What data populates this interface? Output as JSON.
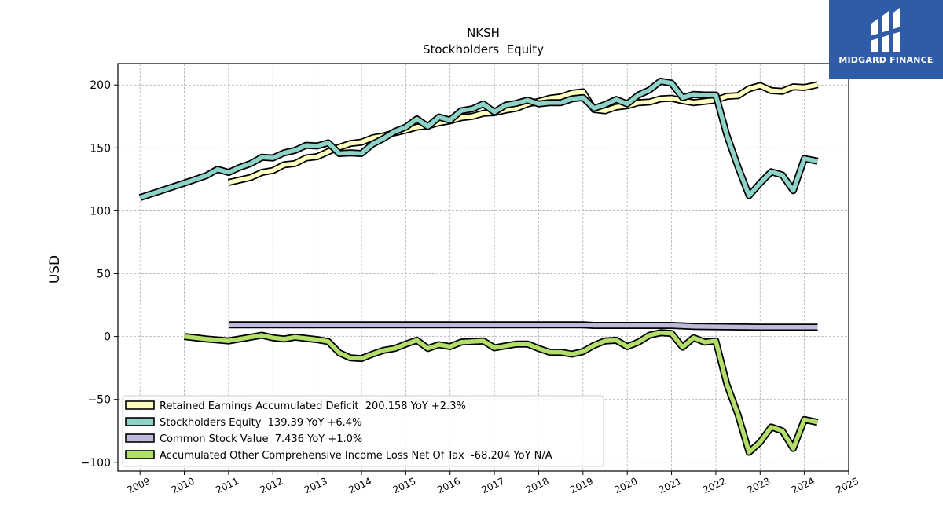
{
  "brand": {
    "name": "MIDGARD FINANCE",
    "bg_color": "#2f5ba7"
  },
  "chart_data": {
    "type": "line",
    "title": "NKSH",
    "subtitle": "Stockholders  Equity",
    "xlabel": "",
    "ylabel": "USD",
    "xlim": [
      2008.5,
      2025
    ],
    "ylim": [
      -107,
      217
    ],
    "x_ticks": [
      2009,
      2010,
      2011,
      2012,
      2013,
      2014,
      2015,
      2016,
      2017,
      2018,
      2019,
      2020,
      2021,
      2022,
      2023,
      2024,
      2025
    ],
    "y_ticks": [
      -100,
      -50,
      0,
      50,
      100,
      150,
      200
    ],
    "y_tick_labels": [
      "−100",
      "−50",
      "0",
      "50",
      "100",
      "150",
      "200"
    ],
    "grid": true,
    "legend_position": "lower-left",
    "series": [
      {
        "name": "Retained Earnings Accumulated Deficit",
        "legend": "Retained Earnings Accumulated Deficit  200.158 YoY +2.3%",
        "color": "#ffffc0",
        "points": [
          [
            2011.0,
            122.5
          ],
          [
            2011.25,
            124.5
          ],
          [
            2011.5,
            126.5
          ],
          [
            2011.75,
            130.5
          ],
          [
            2012.0,
            132.0
          ],
          [
            2012.25,
            136.5
          ],
          [
            2012.5,
            137.5
          ],
          [
            2012.75,
            142.0
          ],
          [
            2013.0,
            143.0
          ],
          [
            2013.25,
            147.0
          ],
          [
            2013.5,
            150.5
          ],
          [
            2013.75,
            153.5
          ],
          [
            2014.0,
            154.5
          ],
          [
            2014.25,
            158.0
          ],
          [
            2014.5,
            159.5
          ],
          [
            2014.75,
            162.0
          ],
          [
            2015.0,
            164.0
          ],
          [
            2015.25,
            166.5
          ],
          [
            2015.5,
            167.5
          ],
          [
            2015.75,
            170.0
          ],
          [
            2016.0,
            171.5
          ],
          [
            2016.25,
            174.0
          ],
          [
            2016.5,
            175.0
          ],
          [
            2016.75,
            177.5
          ],
          [
            2017.0,
            178.0
          ],
          [
            2017.25,
            180.0
          ],
          [
            2017.5,
            181.5
          ],
          [
            2017.75,
            185.0
          ],
          [
            2018.0,
            187.0
          ],
          [
            2018.25,
            189.5
          ],
          [
            2018.5,
            190.5
          ],
          [
            2018.75,
            193.5
          ],
          [
            2019.0,
            194.5
          ],
          [
            2019.25,
            180.5
          ],
          [
            2019.5,
            179.5
          ],
          [
            2019.75,
            182.5
          ],
          [
            2020.0,
            183.5
          ],
          [
            2020.25,
            186.0
          ],
          [
            2020.5,
            186.5
          ],
          [
            2020.75,
            189.0
          ],
          [
            2021.0,
            189.5
          ],
          [
            2021.25,
            187.5
          ],
          [
            2021.5,
            186.0
          ],
          [
            2021.75,
            187.0
          ],
          [
            2022.0,
            188.0
          ],
          [
            2022.25,
            191.0
          ],
          [
            2022.5,
            191.5
          ],
          [
            2022.75,
            197.0
          ],
          [
            2023.0,
            199.5
          ],
          [
            2023.25,
            195.5
          ],
          [
            2023.5,
            195.0
          ],
          [
            2023.75,
            198.5
          ],
          [
            2024.0,
            198.0
          ],
          [
            2024.3,
            200.2
          ]
        ]
      },
      {
        "name": "Stockholders Equity",
        "legend": "Stockholders Equity  139.39 YoY +6.4%",
        "color": "#8dd3c7",
        "points": [
          [
            2009.0,
            110.5
          ],
          [
            2010.0,
            122.0
          ],
          [
            2010.5,
            128.0
          ],
          [
            2010.75,
            133.0
          ],
          [
            2011.0,
            130.5
          ],
          [
            2011.25,
            134.5
          ],
          [
            2011.5,
            137.5
          ],
          [
            2011.75,
            142.5
          ],
          [
            2012.0,
            142.0
          ],
          [
            2012.25,
            146.0
          ],
          [
            2012.5,
            148.0
          ],
          [
            2012.75,
            152.0
          ],
          [
            2013.0,
            151.5
          ],
          [
            2013.25,
            154.0
          ],
          [
            2013.5,
            145.5
          ],
          [
            2013.75,
            146.0
          ],
          [
            2014.0,
            145.5
          ],
          [
            2014.25,
            153.0
          ],
          [
            2014.5,
            157.5
          ],
          [
            2014.75,
            163.0
          ],
          [
            2015.0,
            166.5
          ],
          [
            2015.25,
            173.0
          ],
          [
            2015.5,
            167.0
          ],
          [
            2015.75,
            174.5
          ],
          [
            2016.0,
            172.0
          ],
          [
            2016.25,
            179.5
          ],
          [
            2016.5,
            181.0
          ],
          [
            2016.75,
            185.0
          ],
          [
            2017.0,
            178.5
          ],
          [
            2017.25,
            184.0
          ],
          [
            2017.5,
            185.5
          ],
          [
            2017.75,
            188.0
          ],
          [
            2018.0,
            185.0
          ],
          [
            2018.25,
            186.0
          ],
          [
            2018.5,
            186.0
          ],
          [
            2018.75,
            189.0
          ],
          [
            2019.0,
            190.0
          ],
          [
            2019.25,
            181.5
          ],
          [
            2019.5,
            184.5
          ],
          [
            2019.75,
            188.5
          ],
          [
            2020.0,
            185.0
          ],
          [
            2020.25,
            192.0
          ],
          [
            2020.5,
            196.0
          ],
          [
            2020.75,
            203.0
          ],
          [
            2021.0,
            201.5
          ],
          [
            2021.25,
            190.0
          ],
          [
            2021.5,
            192.5
          ],
          [
            2021.75,
            192.0
          ],
          [
            2022.0,
            192.0
          ],
          [
            2022.25,
            160.0
          ],
          [
            2022.5,
            135.0
          ],
          [
            2022.75,
            112.0
          ],
          [
            2023.0,
            122.0
          ],
          [
            2023.25,
            131.0
          ],
          [
            2023.5,
            128.5
          ],
          [
            2023.75,
            116.0
          ],
          [
            2024.0,
            141.5
          ],
          [
            2024.3,
            139.4
          ]
        ]
      },
      {
        "name": "Common Stock Value",
        "legend": "Common Stock Value  7.436 YoY +1.0%",
        "color": "#bebada",
        "points": [
          [
            2011.0,
            9.3
          ],
          [
            2019.0,
            9.3
          ],
          [
            2019.25,
            8.8
          ],
          [
            2021.0,
            8.8
          ],
          [
            2021.5,
            8.0
          ],
          [
            2023.0,
            7.4
          ],
          [
            2024.3,
            7.4
          ]
        ]
      },
      {
        "name": "Accumulated Other Comprehensive Income Loss Net Of Tax",
        "legend": "Accumulated Other Comprehensive Income Loss Net Of Tax  -68.204 YoY N/A",
        "color": "#b3de69",
        "points": [
          [
            2010.0,
            0.0
          ],
          [
            2010.5,
            -2.0
          ],
          [
            2011.0,
            -3.5
          ],
          [
            2011.25,
            -2.0
          ],
          [
            2011.5,
            -0.5
          ],
          [
            2011.75,
            1.0
          ],
          [
            2012.0,
            -1.0
          ],
          [
            2012.25,
            -2.0
          ],
          [
            2012.5,
            -0.5
          ],
          [
            2012.75,
            -1.5
          ],
          [
            2013.0,
            -2.5
          ],
          [
            2013.25,
            -4.0
          ],
          [
            2013.5,
            -13.0
          ],
          [
            2013.75,
            -17.0
          ],
          [
            2014.0,
            -17.5
          ],
          [
            2014.25,
            -14.0
          ],
          [
            2014.5,
            -11.0
          ],
          [
            2014.75,
            -9.5
          ],
          [
            2015.0,
            -6.0
          ],
          [
            2015.25,
            -3.0
          ],
          [
            2015.5,
            -9.5
          ],
          [
            2015.75,
            -6.5
          ],
          [
            2016.0,
            -8.0
          ],
          [
            2016.25,
            -4.5
          ],
          [
            2016.5,
            -4.0
          ],
          [
            2016.75,
            -3.5
          ],
          [
            2017.0,
            -9.0
          ],
          [
            2017.25,
            -7.5
          ],
          [
            2017.5,
            -6.0
          ],
          [
            2017.75,
            -6.0
          ],
          [
            2018.0,
            -9.5
          ],
          [
            2018.25,
            -12.5
          ],
          [
            2018.5,
            -12.5
          ],
          [
            2018.75,
            -14.0
          ],
          [
            2019.0,
            -12.0
          ],
          [
            2019.25,
            -7.0
          ],
          [
            2019.5,
            -3.5
          ],
          [
            2019.75,
            -3.0
          ],
          [
            2020.0,
            -8.0
          ],
          [
            2020.25,
            -4.5
          ],
          [
            2020.5,
            1.0
          ],
          [
            2020.75,
            3.0
          ],
          [
            2021.0,
            2.5
          ],
          [
            2021.25,
            -8.5
          ],
          [
            2021.5,
            -1.0
          ],
          [
            2021.75,
            -4.5
          ],
          [
            2022.0,
            -3.5
          ],
          [
            2022.25,
            -38.0
          ],
          [
            2022.5,
            -62.0
          ],
          [
            2022.75,
            -92.0
          ],
          [
            2023.0,
            -84.0
          ],
          [
            2023.25,
            -72.0
          ],
          [
            2023.5,
            -75.0
          ],
          [
            2023.75,
            -89.0
          ],
          [
            2024.0,
            -66.0
          ],
          [
            2024.3,
            -68.2
          ]
        ]
      }
    ]
  }
}
